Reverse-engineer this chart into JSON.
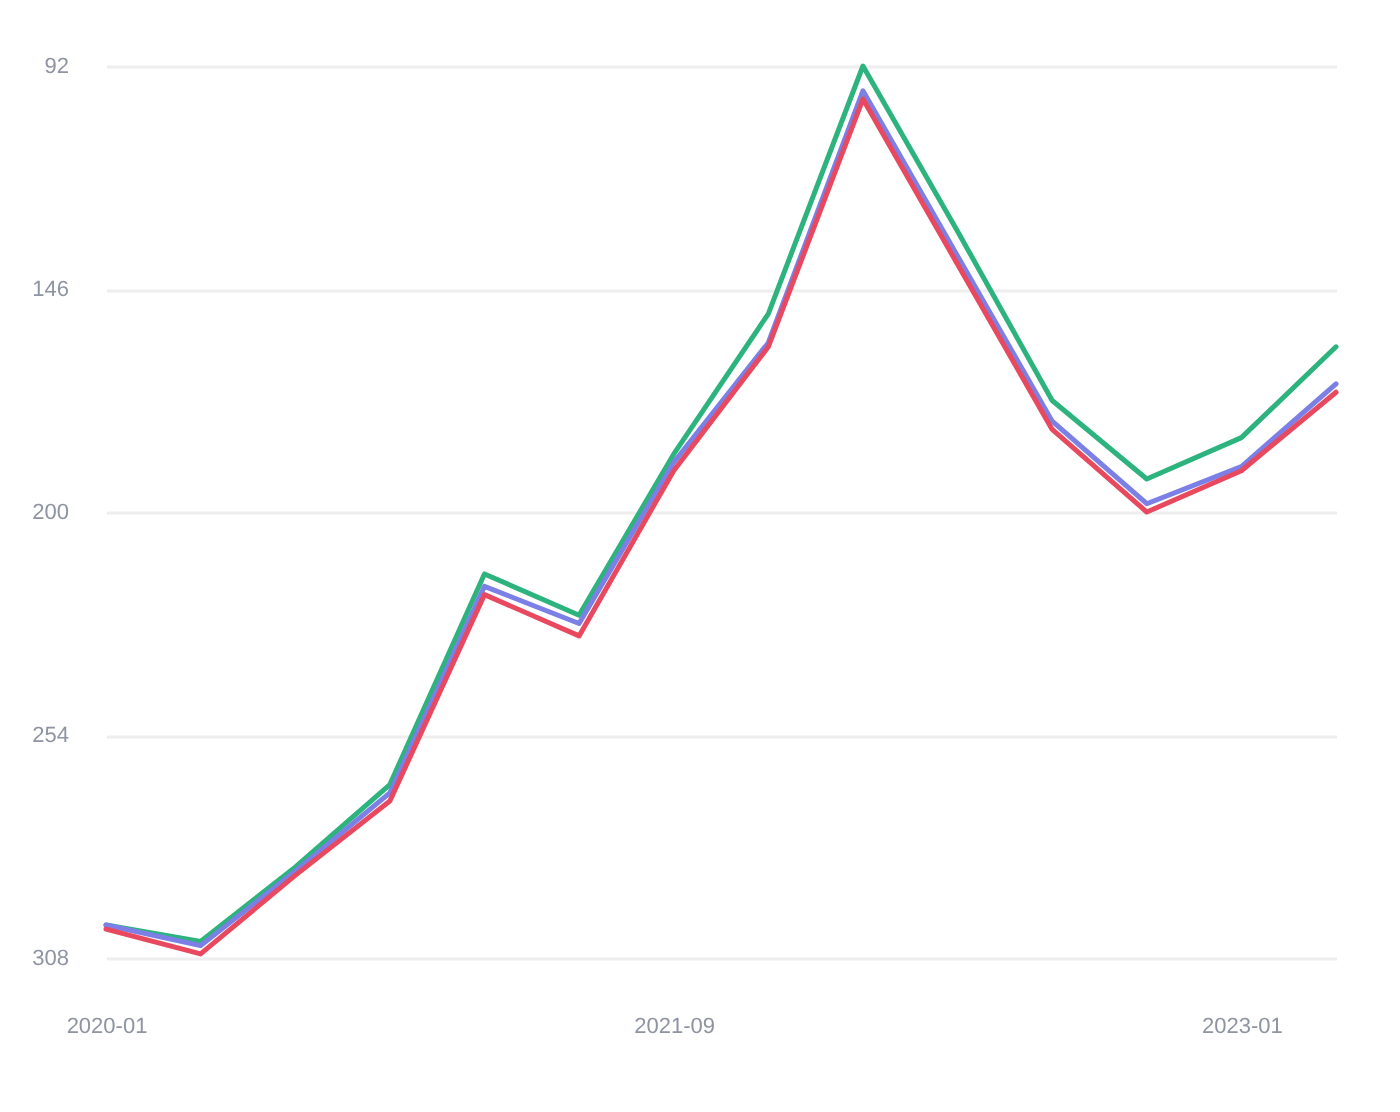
{
  "chart_data": {
    "type": "line",
    "categories": [
      "2020-01",
      null,
      null,
      null,
      null,
      null,
      "2021-09",
      null,
      null,
      null,
      null,
      null,
      "2023-01",
      null
    ],
    "series": [
      {
        "color": "#2db37d",
        "values": [
          300,
          304,
          286,
          266,
          215,
          225,
          186,
          152,
          92,
          132,
          173,
          192,
          182,
          160
        ]
      },
      {
        "color": "#7b7fe6",
        "values": [
          300,
          305,
          287,
          268,
          218,
          227,
          188,
          159,
          98,
          138,
          178,
          198,
          189,
          169
        ]
      },
      {
        "color": "#e8495e",
        "values": [
          301,
          307,
          288,
          270,
          220,
          230,
          190,
          160,
          100,
          140,
          180,
          200,
          190,
          171
        ]
      }
    ],
    "ylim": [
      308,
      92
    ],
    "yticks": [
      92,
      146,
      200,
      254,
      308
    ],
    "grid": "y",
    "legend": false,
    "marker": "none",
    "line_style": "solid"
  }
}
